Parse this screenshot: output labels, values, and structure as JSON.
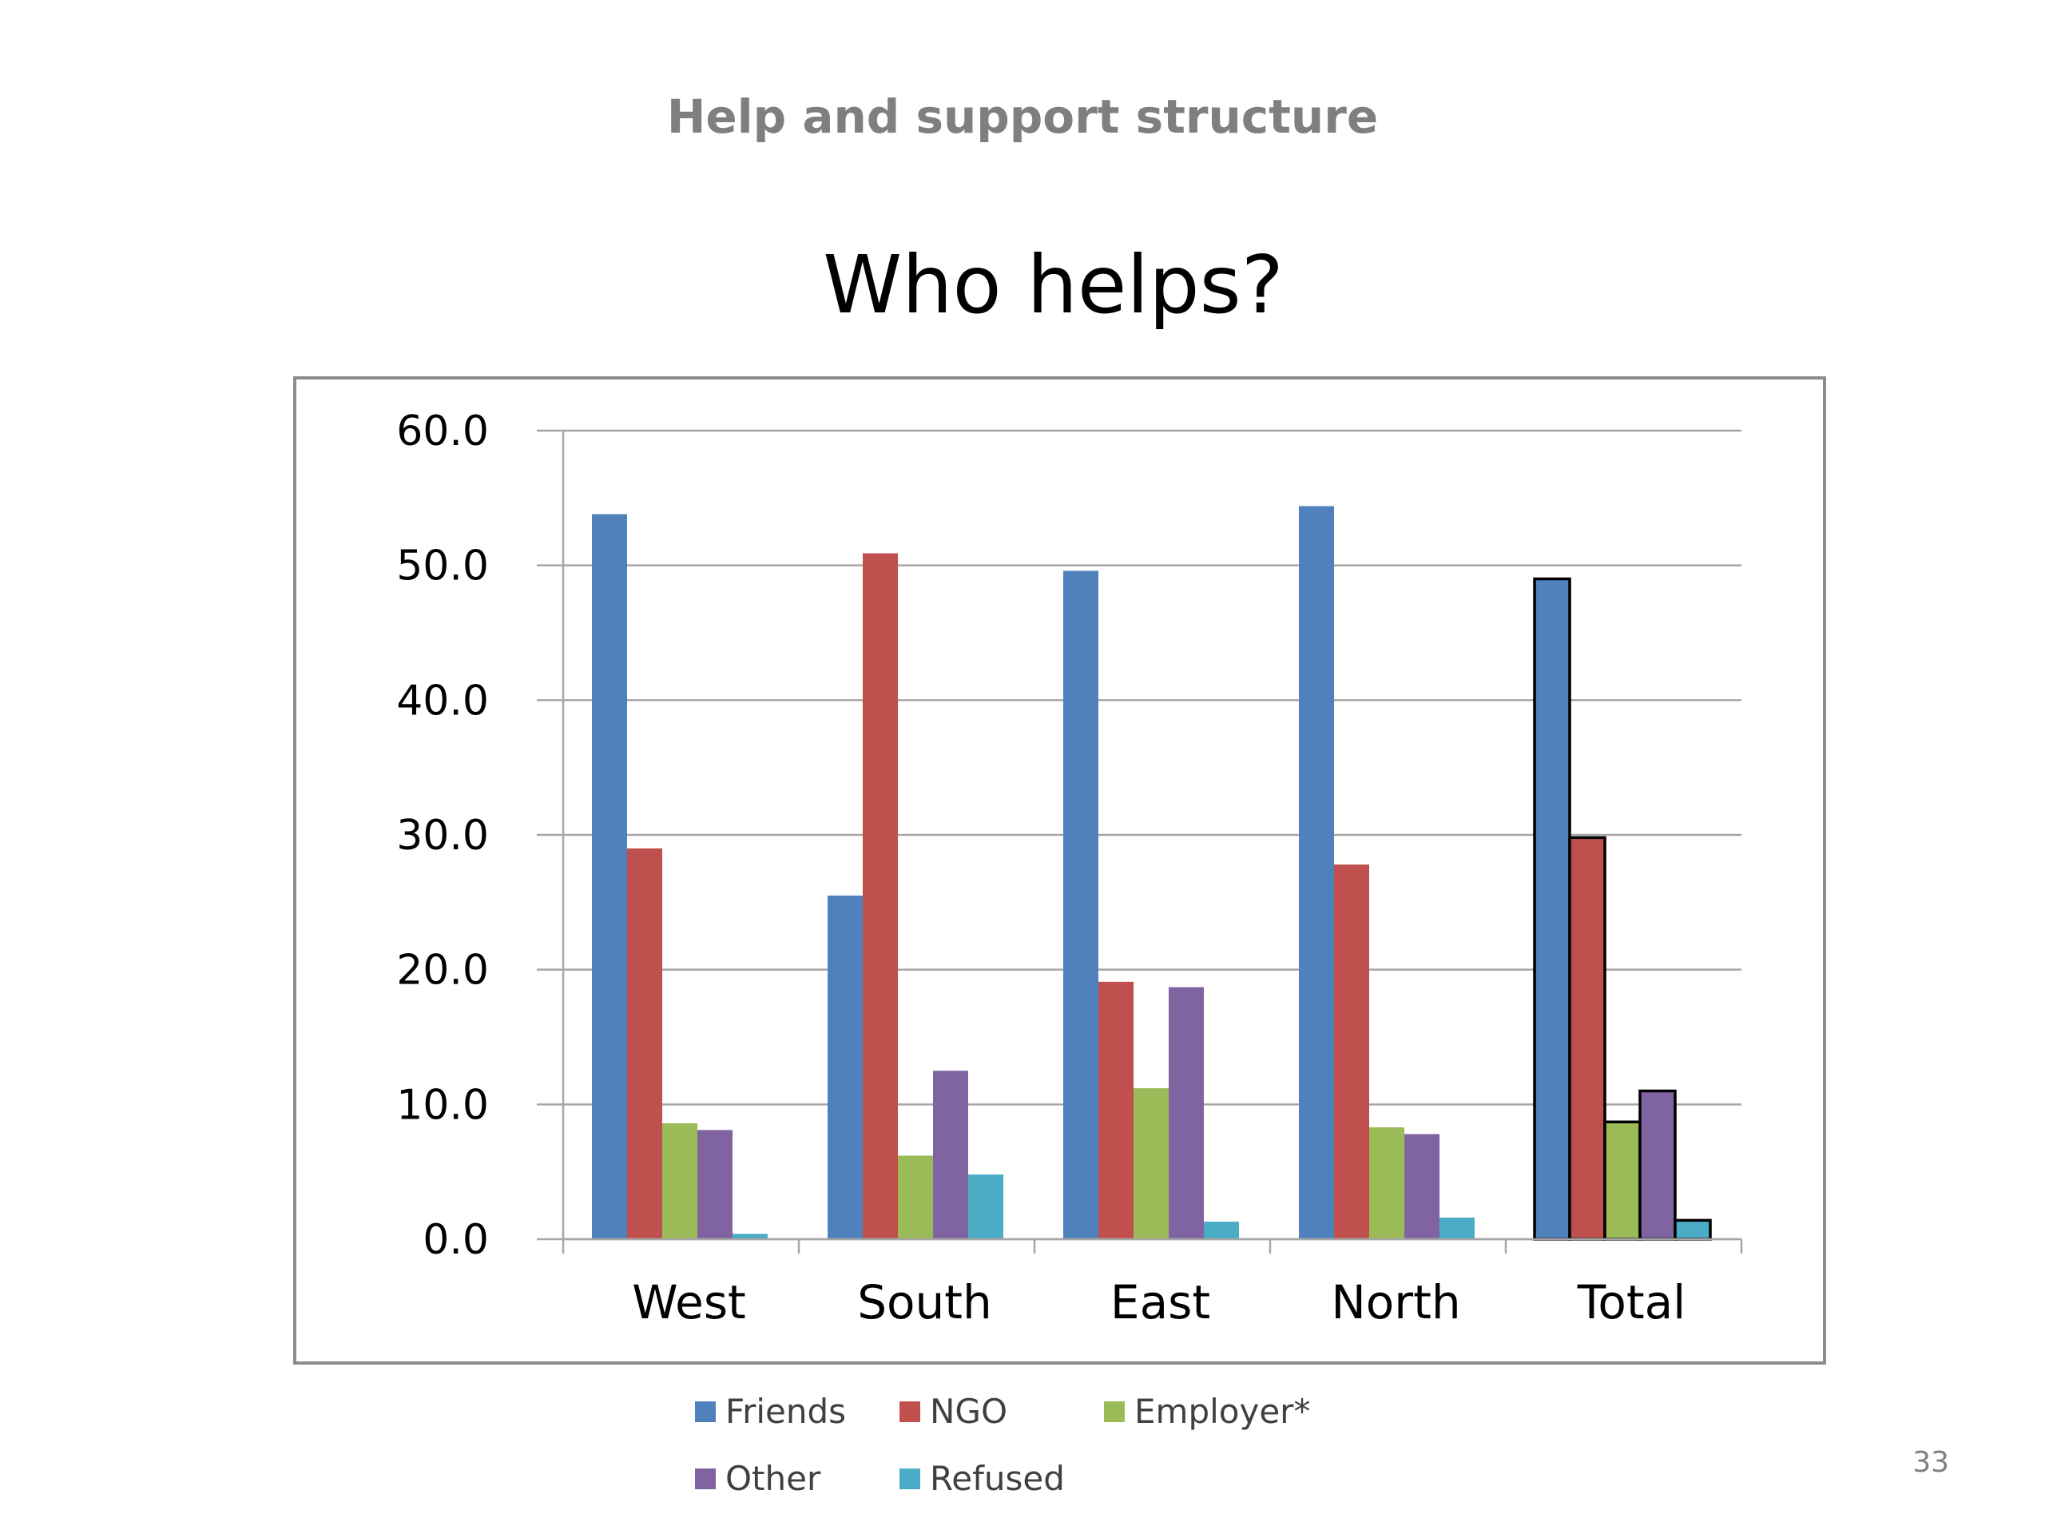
{
  "slide": {
    "header": "Help and support structure",
    "page_number": "33"
  },
  "chart_data": {
    "type": "bar",
    "title": "Who helps?",
    "xlabel": "",
    "ylabel": "",
    "categories": [
      "West",
      "South",
      "East",
      "North",
      "Total"
    ],
    "ylim": [
      0,
      60
    ],
    "y_ticks": [
      "0.0",
      "10.0",
      "20.0",
      "30.0",
      "40.0",
      "50.0",
      "60.0"
    ],
    "grid": true,
    "legend_position": "bottom",
    "highlighted_category": "Total",
    "series": [
      {
        "name": "Friends",
        "color": "#4f81bd",
        "values": [
          53.8,
          25.5,
          49.6,
          54.4,
          49.0
        ]
      },
      {
        "name": "NGO",
        "color": "#c0504d",
        "values": [
          29.0,
          50.9,
          19.1,
          27.8,
          29.8
        ]
      },
      {
        "name": "Employer*",
        "color": "#9bbb59",
        "values": [
          8.6,
          6.2,
          11.2,
          8.3,
          8.7
        ]
      },
      {
        "name": "Other",
        "color": "#8064a2",
        "values": [
          8.1,
          12.5,
          18.7,
          7.8,
          11.0
        ]
      },
      {
        "name": "Refused",
        "color": "#4bacc6",
        "values": [
          0.4,
          4.8,
          1.3,
          1.6,
          1.4
        ]
      }
    ]
  }
}
